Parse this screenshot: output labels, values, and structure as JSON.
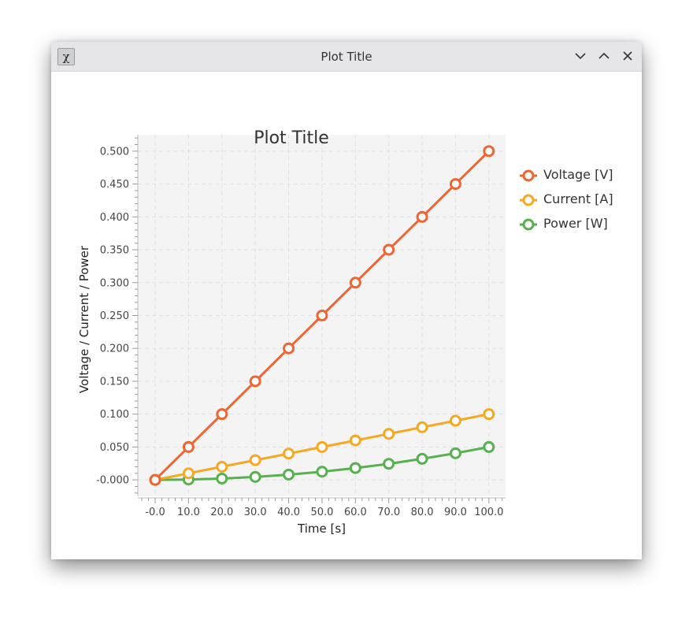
{
  "window": {
    "title": "Plot Title",
    "app_icon": "x11-app-icon",
    "buttons": [
      "minimize-icon",
      "maximize-icon",
      "close-icon"
    ]
  },
  "colors": {
    "voltage": "#ee6633",
    "current": "#f7a823",
    "power": "#56b14e",
    "plot_bg": "#f4f4f4"
  },
  "chart_data": {
    "type": "line",
    "title": "Plot Title",
    "xlabel": "Time [s]",
    "ylabel": "Voltage / Current / Power",
    "x": [
      0,
      10,
      20,
      30,
      40,
      50,
      60,
      70,
      80,
      90,
      100
    ],
    "x_tick_labels": [
      "-0.0",
      "10.0",
      "20.0",
      "30.0",
      "40.0",
      "50.0",
      "60.0",
      "70.0",
      "80.0",
      "90.0",
      "100.0"
    ],
    "y_tick_labels": [
      "-0.000",
      "0.050",
      "0.100",
      "0.150",
      "0.200",
      "0.250",
      "0.300",
      "0.350",
      "0.400",
      "0.450",
      "0.500"
    ],
    "y_ticks": [
      0,
      0.05,
      0.1,
      0.15,
      0.2,
      0.25,
      0.3,
      0.35,
      0.4,
      0.45,
      0.5
    ],
    "xlim": [
      -5.2,
      105
    ],
    "ylim": [
      -0.025,
      0.525
    ],
    "grid": true,
    "legend_position": "right",
    "series": [
      {
        "name": "Voltage [V]",
        "color": "#ee6633",
        "values": [
          0,
          0.05,
          0.1,
          0.15,
          0.2,
          0.25,
          0.3,
          0.35,
          0.4,
          0.45,
          0.5
        ]
      },
      {
        "name": "Current [A]",
        "color": "#f7a823",
        "values": [
          0,
          0.01,
          0.02,
          0.03,
          0.04,
          0.05,
          0.06,
          0.07,
          0.08,
          0.09,
          0.1
        ]
      },
      {
        "name": "Power [W]",
        "color": "#56b14e",
        "values": [
          0,
          0.0005,
          0.002,
          0.0045,
          0.008,
          0.0125,
          0.018,
          0.0245,
          0.032,
          0.0405,
          0.05
        ]
      }
    ]
  }
}
